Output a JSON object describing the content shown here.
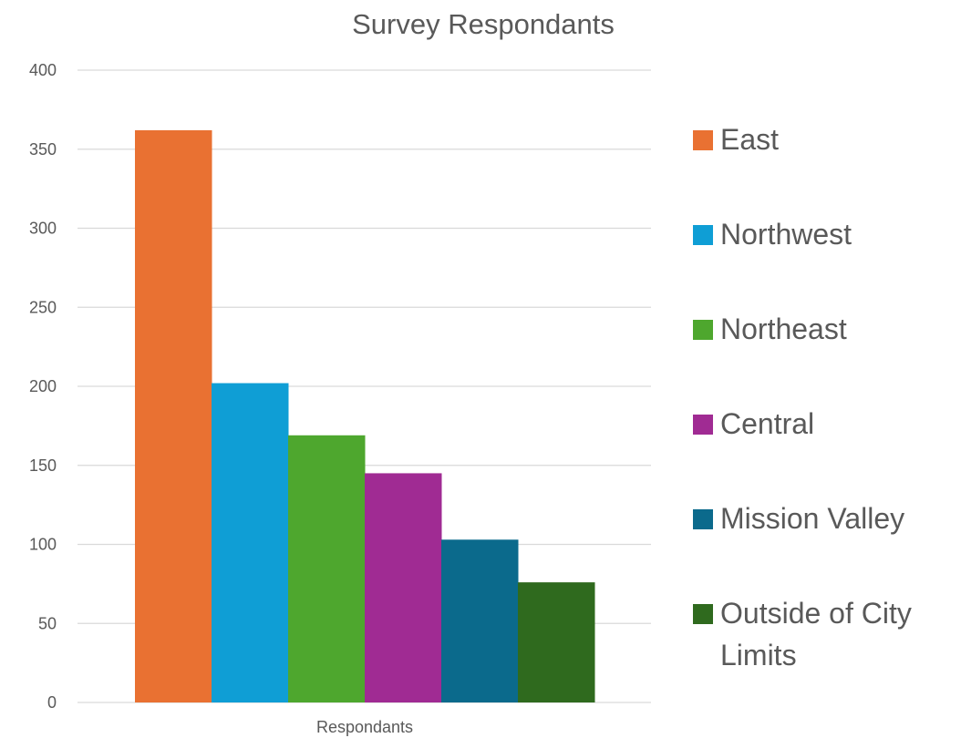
{
  "chart_data": {
    "type": "bar",
    "title": "Survey Respondants",
    "xlabel": "",
    "ylabel": "",
    "categories": [
      "Respondants"
    ],
    "series": [
      {
        "name": "East",
        "values": [
          362
        ],
        "color": "#E97132"
      },
      {
        "name": "Northwest",
        "values": [
          202
        ],
        "color": "#0F9ED5"
      },
      {
        "name": "Northeast",
        "values": [
          169
        ],
        "color": "#4EA72E"
      },
      {
        "name": "Central",
        "values": [
          145
        ],
        "color": "#A02B93"
      },
      {
        "name": "Mission Valley",
        "values": [
          103
        ],
        "color": "#0B6A8C"
      },
      {
        "name": "Outside of City Limits",
        "values": [
          76
        ],
        "color": "#2F6A1E"
      }
    ],
    "ylim": [
      0,
      400
    ],
    "yticks": [
      0,
      50,
      100,
      150,
      200,
      250,
      300,
      350,
      400
    ],
    "grid": true,
    "legend_position": "right"
  }
}
